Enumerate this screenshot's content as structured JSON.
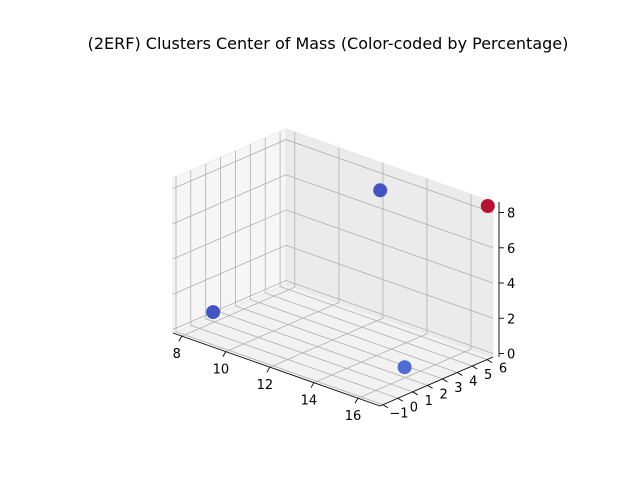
{
  "chart_data": {
    "type": "scatter",
    "projection": "3d",
    "title": "(2ERF) Clusters Center of Mass (Color-coded by Percentage)",
    "xlabel": "",
    "ylabel": "",
    "zlabel": "",
    "grid": true,
    "xlim": [
      7.6,
      17.0
    ],
    "ylim": [
      -1.2,
      6.4
    ],
    "zlim": [
      -0.2,
      8.6
    ],
    "x_ticks": [
      8,
      10,
      12,
      14,
      16
    ],
    "y_ticks": [
      -1,
      0,
      1,
      2,
      3,
      4,
      5,
      6
    ],
    "z_ticks": [
      0,
      2,
      4,
      6,
      8
    ],
    "x_tick_labels": [
      "8",
      "10",
      "12",
      "14",
      "16"
    ],
    "y_tick_labels": [
      "−1",
      "0",
      "1",
      "2",
      "3",
      "4",
      "5",
      "6"
    ],
    "z_tick_labels": [
      "0",
      "2",
      "4",
      "6",
      "8"
    ],
    "colormap": "coolwarm",
    "points": [
      {
        "x": 7.6,
        "y": 1.5,
        "z": 0.0,
        "color": "#3b4cc0"
      },
      {
        "x": 13.5,
        "y": 4.0,
        "z": 8.6,
        "color": "#3b4cc0"
      },
      {
        "x": 16.7,
        "y": 0.9,
        "z": 1.1,
        "color": "#4a63d3"
      },
      {
        "x": 16.9,
        "y": 6.2,
        "z": 8.4,
        "color": "#b40426"
      }
    ]
  }
}
